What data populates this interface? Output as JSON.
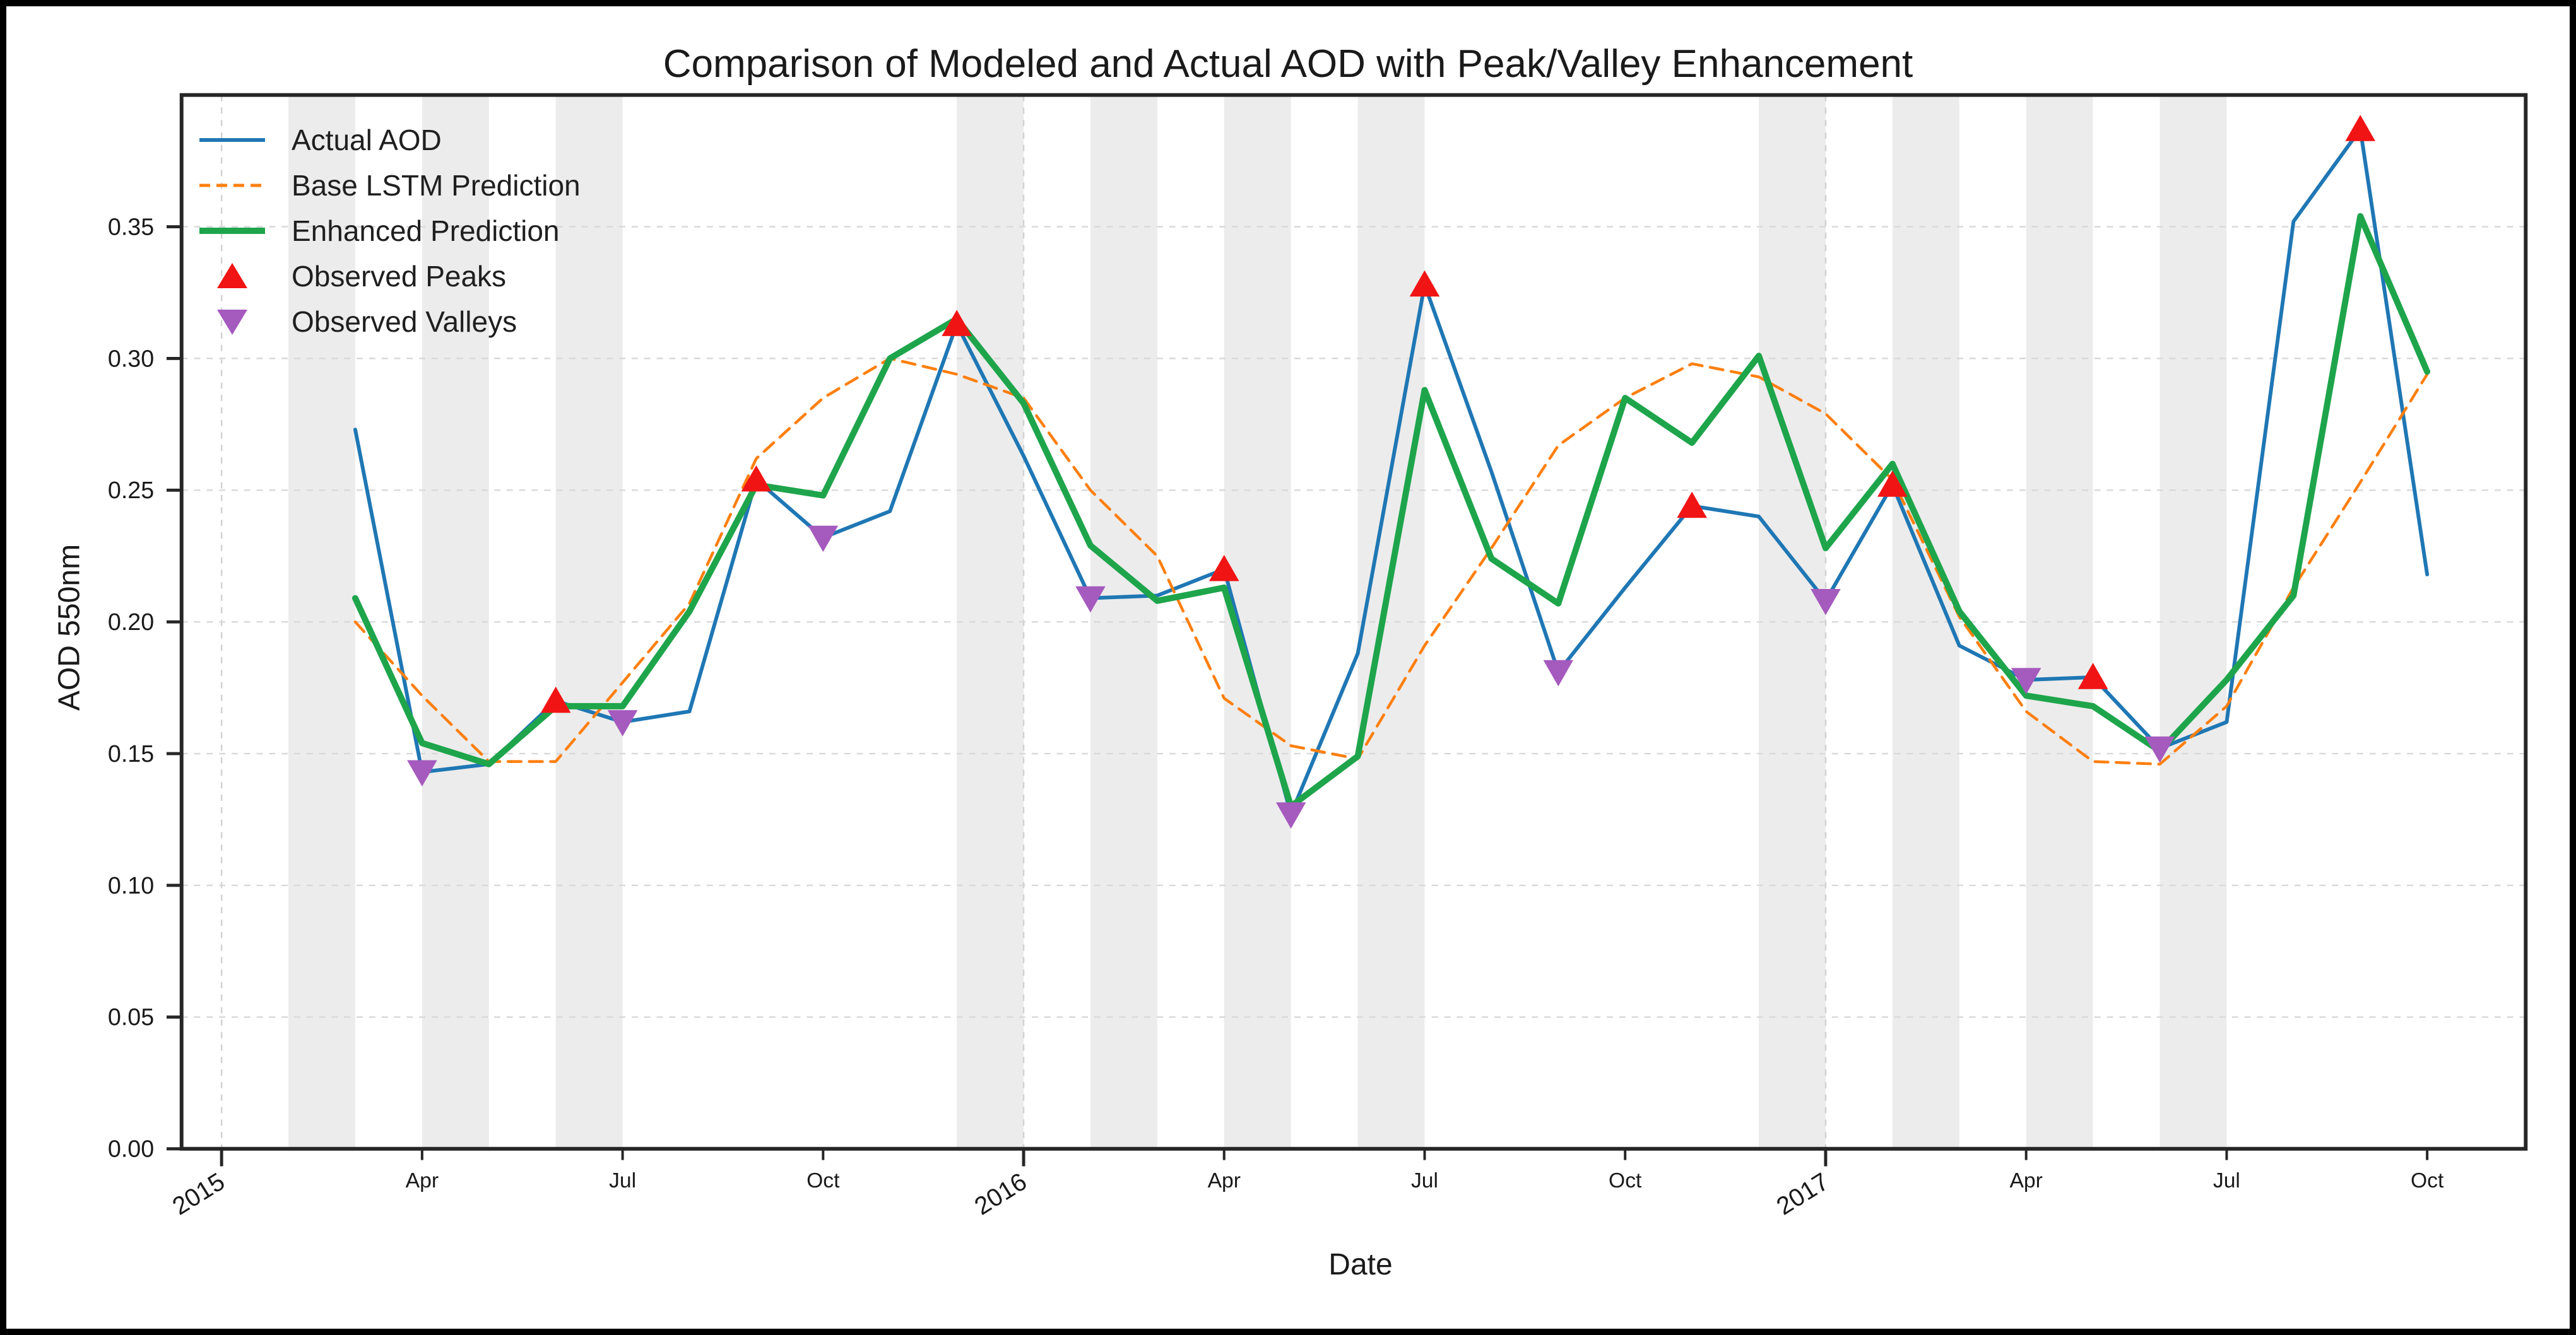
{
  "chart_data": {
    "type": "line",
    "title": "Comparison of Modeled and Actual AOD with Peak/Valley Enhancement",
    "xlabel": "Date",
    "ylabel": "AOD 550nm",
    "ylim": [
      0.0,
      0.4
    ],
    "grid": "dashed-horizontal-and-year-vertical",
    "legend_position": "upper-left",
    "x_labels": [
      "Mar 2015",
      "Apr 2015",
      "May 2015",
      "Jun 2015",
      "Jul 2015",
      "Aug 2015",
      "Sep 2015",
      "Oct 2015",
      "Nov 2015",
      "Dec 2015",
      "Jan 2016",
      "Feb 2016",
      "Mar 2016",
      "Apr 2016",
      "May 2016",
      "Jun 2016",
      "Jul 2016",
      "Aug 2016",
      "Sep 2016",
      "Oct 2016",
      "Nov 2016",
      "Dec 2016",
      "Jan 2017",
      "Feb 2017",
      "Mar 2017",
      "Apr 2017",
      "May 2017",
      "Jun 2017",
      "Jul 2017",
      "Aug 2017",
      "Sep 2017",
      "Oct 2017"
    ],
    "y_ticks": [
      "0.00",
      "0.05",
      "0.10",
      "0.15",
      "0.20",
      "0.25",
      "0.30",
      "0.35"
    ],
    "x_year_ticks": [
      {
        "label": "2015",
        "month_offset": 0
      },
      {
        "label": "2016",
        "month_offset": 12
      },
      {
        "label": "2017",
        "month_offset": 24
      }
    ],
    "x_month_ticks": [
      {
        "label": "Apr",
        "month_offset": 3
      },
      {
        "label": "Jul",
        "month_offset": 6
      },
      {
        "label": "Oct",
        "month_offset": 9
      },
      {
        "label": "Apr",
        "month_offset": 15
      },
      {
        "label": "Jul",
        "month_offset": 18
      },
      {
        "label": "Oct",
        "month_offset": 21
      },
      {
        "label": "Apr",
        "month_offset": 27
      },
      {
        "label": "Jul",
        "month_offset": 30
      },
      {
        "label": "Oct",
        "month_offset": 33
      }
    ],
    "shaded_month_offsets": [
      1,
      3,
      5,
      11,
      13,
      15,
      17,
      23,
      25,
      27,
      29
    ],
    "series": [
      {
        "name": "Actual AOD",
        "style": "solid",
        "color": "#1f77b4",
        "width": 6,
        "values": [
          0.273,
          0.143,
          0.146,
          0.17,
          0.162,
          0.166,
          0.254,
          0.232,
          0.242,
          0.313,
          0.263,
          0.209,
          0.21,
          0.22,
          0.127,
          0.188,
          0.328,
          0.257,
          0.181,
          0.213,
          0.244,
          0.24,
          0.208,
          0.252,
          0.191,
          0.178,
          0.179,
          0.152,
          0.162,
          0.352,
          0.387,
          0.218
        ]
      },
      {
        "name": "Base LSTM Prediction",
        "style": "dashed",
        "color": "#ff7f0e",
        "width": 4.5,
        "values": [
          0.2,
          0.172,
          0.147,
          0.147,
          0.177,
          0.207,
          0.262,
          0.285,
          0.3,
          0.294,
          0.285,
          0.25,
          0.225,
          0.171,
          0.153,
          0.148,
          0.191,
          0.228,
          0.267,
          0.285,
          0.298,
          0.293,
          0.279,
          0.254,
          0.202,
          0.166,
          0.147,
          0.146,
          0.168,
          0.213,
          0.253,
          0.294
        ]
      },
      {
        "name": "Enhanced Prediction",
        "style": "solid",
        "color": "#1ea54b",
        "width": 10,
        "values": [
          0.209,
          0.154,
          0.146,
          0.168,
          0.168,
          0.204,
          0.252,
          0.248,
          0.3,
          0.315,
          0.283,
          0.229,
          0.208,
          0.213,
          0.13,
          0.149,
          0.288,
          0.224,
          0.207,
          0.285,
          0.268,
          0.301,
          0.228,
          0.26,
          0.204,
          0.172,
          0.168,
          0.151,
          0.178,
          0.21,
          0.354,
          0.295
        ]
      }
    ],
    "peaks": {
      "name": "Observed Peaks",
      "color": "#f11414",
      "marker": "triangle-up",
      "points": [
        {
          "month": "Jun 2015",
          "value": 0.17
        },
        {
          "month": "Sep 2015",
          "value": 0.254
        },
        {
          "month": "Dec 2015",
          "value": 0.313
        },
        {
          "month": "Apr 2016",
          "value": 0.22
        },
        {
          "month": "Jul 2016",
          "value": 0.328
        },
        {
          "month": "Nov 2016",
          "value": 0.244
        },
        {
          "month": "Feb 2017",
          "value": 0.252
        },
        {
          "month": "May 2017",
          "value": 0.179
        },
        {
          "month": "Sep 2017",
          "value": 0.387
        }
      ]
    },
    "valleys": {
      "name": "Observed Valleys",
      "color": "#a55abe",
      "marker": "triangle-down",
      "points": [
        {
          "month": "Apr 2015",
          "value": 0.143
        },
        {
          "month": "Jul 2015",
          "value": 0.162
        },
        {
          "month": "Oct 2015",
          "value": 0.232
        },
        {
          "month": "Feb 2016",
          "value": 0.209
        },
        {
          "month": "May 2016",
          "value": 0.127
        },
        {
          "month": "Sep 2016",
          "value": 0.181
        },
        {
          "month": "Jan 2017",
          "value": 0.208
        },
        {
          "month": "Apr 2017",
          "value": 0.178
        },
        {
          "month": "Jun 2017",
          "value": 0.152
        }
      ]
    },
    "legend_items": [
      {
        "label": "Actual AOD",
        "swatch": "line-solid",
        "color": "#1f77b4"
      },
      {
        "label": "Base LSTM Prediction",
        "swatch": "line-dashed",
        "color": "#ff7f0e"
      },
      {
        "label": "Enhanced Prediction",
        "swatch": "line-thick",
        "color": "#1ea54b"
      },
      {
        "label": "Observed Peaks",
        "swatch": "triangle-up",
        "color": "#f11414"
      },
      {
        "label": "Observed Valleys",
        "swatch": "triangle-down",
        "color": "#a55abe"
      }
    ],
    "colors": {
      "background": "#ffffff",
      "band": "#ececec",
      "grid": "#d9d9d9",
      "year_grid": "#d2d2d2",
      "spine": "#262626",
      "text": "#1a1a1a",
      "outer_border": "#000000"
    }
  }
}
